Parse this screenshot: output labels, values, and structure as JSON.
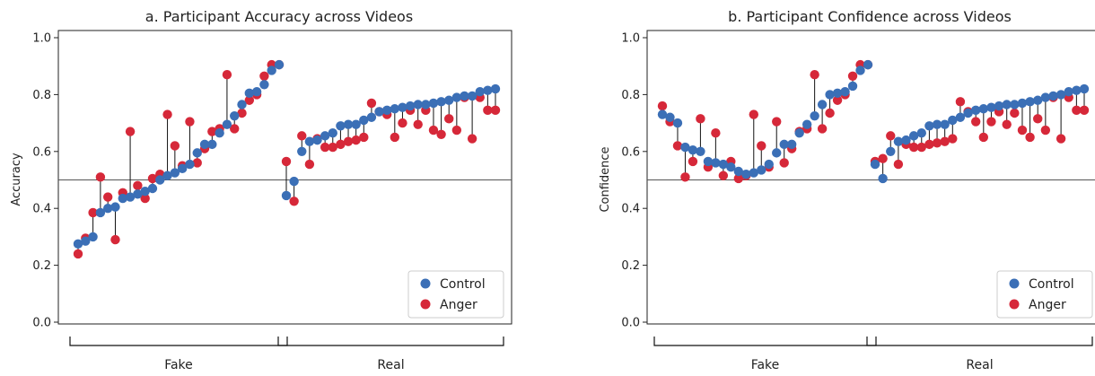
{
  "colors": {
    "control": "#3b6fb6",
    "anger": "#d62839",
    "stem": "#111111",
    "refline": "#555555"
  },
  "chart_data": [
    {
      "type": "scatter",
      "title": "a. Participant Accuracy across Videos",
      "ylabel": "Accuracy",
      "ylim": [
        0,
        1.0
      ],
      "yticks": [
        "0.0",
        "0.2",
        "0.4",
        "0.6",
        "0.8",
        "1.0"
      ],
      "reference_line": 0.5,
      "groups": [
        "Fake",
        "Real"
      ],
      "legend_position": "bottom-right",
      "series": [
        {
          "name": "Control",
          "groups": {
            "Fake": [
              0.275,
              0.285,
              0.3,
              0.385,
              0.4,
              0.405,
              0.435,
              0.44,
              0.45,
              0.46,
              0.47,
              0.5,
              0.515,
              0.525,
              0.54,
              0.555,
              0.595,
              0.625,
              0.625,
              0.665,
              0.695,
              0.725,
              0.765,
              0.805,
              0.81,
              0.835,
              0.885,
              0.905
            ],
            "Real": [
              0.445,
              0.495,
              0.6,
              0.635,
              0.64,
              0.655,
              0.665,
              0.69,
              0.695,
              0.695,
              0.71,
              0.72,
              0.74,
              0.745,
              0.75,
              0.755,
              0.76,
              0.765,
              0.765,
              0.77,
              0.775,
              0.78,
              0.79,
              0.795,
              0.795,
              0.81,
              0.815,
              0.82
            ]
          }
        },
        {
          "name": "Anger",
          "groups": {
            "Fake": [
              0.24,
              0.295,
              0.385,
              0.51,
              0.44,
              0.29,
              0.455,
              0.67,
              0.48,
              0.435,
              0.505,
              0.52,
              0.73,
              0.62,
              0.55,
              0.705,
              0.56,
              0.61,
              0.67,
              0.68,
              0.87,
              0.68,
              0.735,
              0.78,
              0.8,
              0.865,
              0.905,
              0.905
            ],
            "Real": [
              0.565,
              0.425,
              0.655,
              0.555,
              0.645,
              0.615,
              0.615,
              0.625,
              0.635,
              0.64,
              0.65,
              0.77,
              0.74,
              0.73,
              0.65,
              0.7,
              0.745,
              0.695,
              0.745,
              0.675,
              0.66,
              0.715,
              0.675,
              0.79,
              0.645,
              0.79,
              0.745,
              0.745
            ]
          }
        }
      ]
    },
    {
      "type": "scatter",
      "title": "b. Participant Confidence across Videos",
      "ylabel": "Confidence",
      "ylim": [
        0,
        1.0
      ],
      "yticks": [
        "0.0",
        "0.2",
        "0.4",
        "0.6",
        "0.8",
        "1.0"
      ],
      "reference_line": 0.5,
      "groups": [
        "Fake",
        "Real"
      ],
      "legend_position": "bottom-right",
      "series": [
        {
          "name": "Control",
          "groups": {
            "Fake": [
              0.73,
              0.72,
              0.7,
              0.615,
              0.605,
              0.6,
              0.565,
              0.56,
              0.555,
              0.545,
              0.53,
              0.52,
              0.525,
              0.535,
              0.555,
              0.595,
              0.625,
              0.625,
              0.665,
              0.695,
              0.725,
              0.765,
              0.8,
              0.805,
              0.81,
              0.83,
              0.885,
              0.905
            ],
            "Real": [
              0.555,
              0.505,
              0.6,
              0.635,
              0.64,
              0.655,
              0.665,
              0.69,
              0.695,
              0.695,
              0.71,
              0.72,
              0.735,
              0.745,
              0.75,
              0.755,
              0.76,
              0.765,
              0.765,
              0.77,
              0.775,
              0.78,
              0.79,
              0.795,
              0.8,
              0.81,
              0.815,
              0.82
            ]
          }
        },
        {
          "name": "Anger",
          "groups": {
            "Fake": [
              0.76,
              0.705,
              0.62,
              0.51,
              0.565,
              0.715,
              0.545,
              0.665,
              0.515,
              0.565,
              0.505,
              0.515,
              0.73,
              0.62,
              0.545,
              0.705,
              0.56,
              0.61,
              0.67,
              0.68,
              0.87,
              0.68,
              0.735,
              0.78,
              0.8,
              0.865,
              0.905,
              0.905
            ],
            "Real": [
              0.565,
              0.575,
              0.655,
              0.555,
              0.625,
              0.615,
              0.615,
              0.625,
              0.63,
              0.635,
              0.645,
              0.775,
              0.74,
              0.705,
              0.65,
              0.705,
              0.74,
              0.695,
              0.735,
              0.675,
              0.65,
              0.715,
              0.675,
              0.79,
              0.645,
              0.79,
              0.745,
              0.745
            ]
          }
        }
      ]
    }
  ]
}
